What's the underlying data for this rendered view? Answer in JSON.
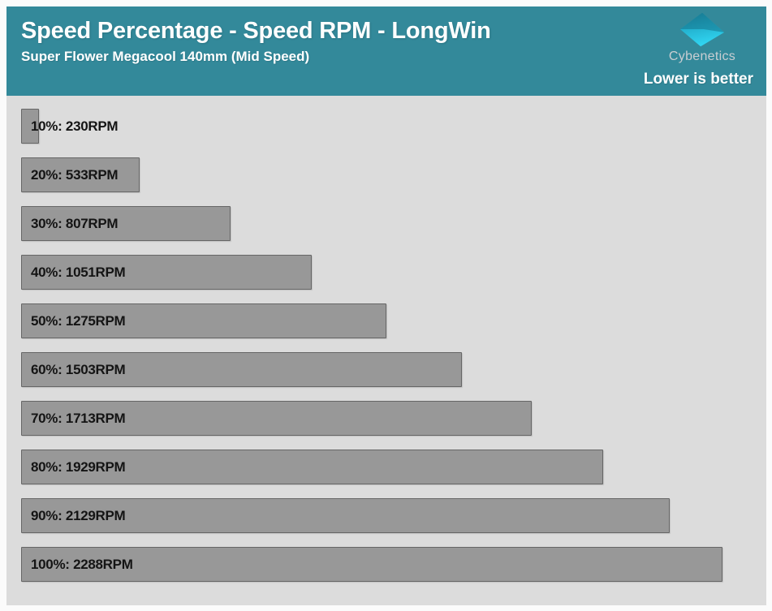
{
  "header": {
    "title": "Speed Percentage - Speed RPM - LongWin",
    "subtitle": "Super Flower Megacool 140mm (Mid Speed)",
    "brand": "Cybenetics",
    "note": "Lower is better",
    "background_color": "#33899A",
    "text_color": "#FFFFFF",
    "logo_colors": {
      "top": "#1A8199",
      "bottom": "#30D4F1"
    }
  },
  "chart_data": {
    "type": "bar",
    "orientation": "horizontal",
    "title": "Speed Percentage - Speed RPM - LongWin",
    "subtitle": "Super Flower Megacool 140mm (Mid Speed)",
    "note": "Lower is better",
    "categories": [
      "10%",
      "20%",
      "30%",
      "40%",
      "50%",
      "60%",
      "70%",
      "80%",
      "90%",
      "100%"
    ],
    "values": [
      230,
      533,
      807,
      1051,
      1275,
      1503,
      1713,
      1929,
      2129,
      2288
    ],
    "unit": "RPM",
    "bar_labels": [
      "10%: 230RPM",
      "20%: 533RPM",
      "30%: 807RPM",
      "40%: 1051RPM",
      "50%: 1275RPM",
      "60%: 1503RPM",
      "70%: 1713RPM",
      "80%: 1929RPM",
      "90%: 2129RPM",
      "100%: 2288RPM"
    ],
    "xlabel": "",
    "ylabel": "",
    "xlim": [
      176,
      2386
    ],
    "grid": false,
    "legend": false,
    "background_color": "#DCDCDC",
    "bar_color": "#989898",
    "bar_border_color": "#666666",
    "label_color": "#141414"
  }
}
